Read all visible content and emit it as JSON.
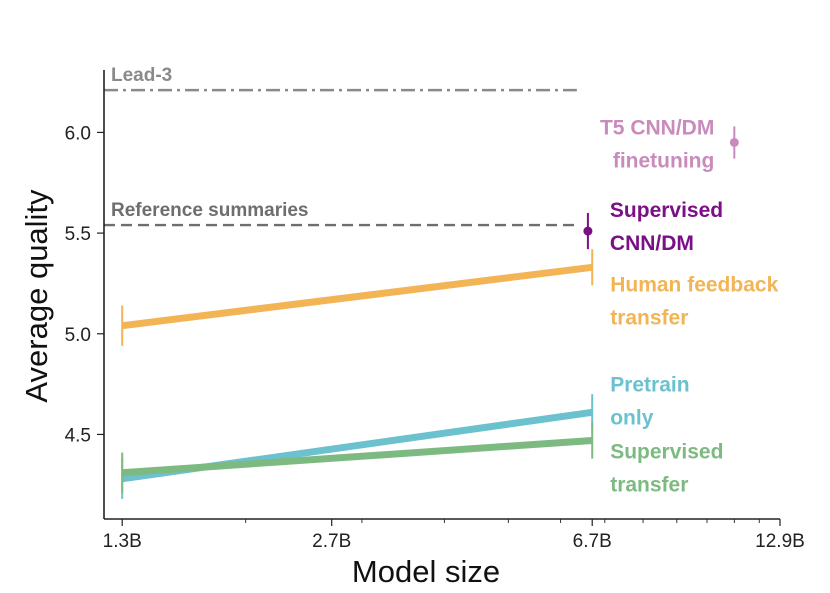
{
  "chart_data": {
    "type": "line",
    "xlabel": "Model size",
    "ylabel": "Average quality",
    "x_scale": "log",
    "x_ticks": [
      {
        "value": 1.3,
        "label": "1.3B"
      },
      {
        "value": 2.7,
        "label": "2.7B"
      },
      {
        "value": 6.7,
        "label": "6.7B"
      },
      {
        "value": 12.9,
        "label": "12.9B"
      }
    ],
    "y_ticks": [
      {
        "value": 4.5,
        "label": "4.5"
      },
      {
        "value": 5.0,
        "label": "5.0"
      },
      {
        "value": 5.5,
        "label": "5.5"
      },
      {
        "value": 6.0,
        "label": "6.0"
      }
    ],
    "xlim": [
      1.22,
      12.9
    ],
    "ylim": [
      4.08,
      6.31
    ],
    "grid": false,
    "reference_lines": [
      {
        "name": "Lead-3",
        "value": 6.21,
        "style": "dash-dot",
        "color": "#8a8a8a"
      },
      {
        "name": "Reference summaries",
        "value": 5.54,
        "style": "dashed",
        "color": "#6e6e6e"
      }
    ],
    "series": [
      {
        "name": [
          "Human feedback",
          "transfer"
        ],
        "color": "#f2b455",
        "x": [
          1.3,
          6.7
        ],
        "y": [
          5.04,
          5.33
        ],
        "err": [
          0.1,
          0.09
        ]
      },
      {
        "name": [
          "Pretrain",
          "only"
        ],
        "color": "#6cc1cf",
        "x": [
          1.3,
          6.7
        ],
        "y": [
          4.28,
          4.61
        ],
        "err": [
          0.1,
          0.09
        ]
      },
      {
        "name": [
          "Supervised",
          "transfer"
        ],
        "color": "#7dba82",
        "x": [
          1.3,
          6.7
        ],
        "y": [
          4.31,
          4.47
        ],
        "err": [
          0.1,
          0.09
        ]
      }
    ],
    "points": [
      {
        "name": [
          "Supervised",
          "CNN/DM"
        ],
        "color": "#7b0f86",
        "x": 6.6,
        "y": 5.51,
        "err": 0.09
      },
      {
        "name": [
          "T5 CNN/DM",
          "finetuning"
        ],
        "color": "#c98bbc",
        "x": 11.0,
        "y": 5.95,
        "err": 0.08
      }
    ]
  }
}
